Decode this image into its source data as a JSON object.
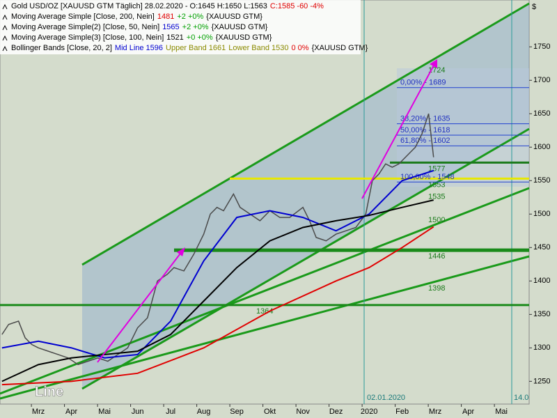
{
  "chart_data": {
    "type": "line",
    "currency": "$",
    "legend_lines": [
      {
        "parts": [
          {
            "text": "Gold USD/OZ [XAUUSD GTM  Täglich] 28.02.2020 - O:1645 H:1650 L:1563",
            "color": "#000000"
          },
          {
            "text": "C:1585 -60 -4%",
            "color": "#e00000"
          }
        ]
      },
      {
        "parts": [
          {
            "text": "Moving Average Simple [Close, 200, Nein]",
            "color": "#000000"
          },
          {
            "text": "1481",
            "color": "#e00000"
          },
          {
            "text": "+2 +0%",
            "color": "#00a000"
          },
          {
            "text": "{XAUUSD GTM}",
            "color": "#000000"
          }
        ]
      },
      {
        "parts": [
          {
            "text": "Moving Average Simple(2) [Close, 50, Nein]",
            "color": "#000000"
          },
          {
            "text": "1565",
            "color": "#0000d0"
          },
          {
            "text": "+2 +0%",
            "color": "#00a000"
          },
          {
            "text": "{XAUUSD GTM}",
            "color": "#000000"
          }
        ]
      },
      {
        "parts": [
          {
            "text": "Moving Average Simple(3) [Close, 100, Nein]",
            "color": "#000000"
          },
          {
            "text": "1521",
            "color": "#000000"
          },
          {
            "text": "+0 +0%",
            "color": "#00a000"
          },
          {
            "text": "{XAUUSD GTM}",
            "color": "#000000"
          }
        ]
      },
      {
        "parts": [
          {
            "text": "Bollinger Bands [Close, 20, 2]",
            "color": "#000000"
          },
          {
            "text": "Mid Line 1596",
            "color": "#0000d0"
          },
          {
            "text": "Upper Band 1661",
            "color": "#8a8a00"
          },
          {
            "text": "Lower Band 1530",
            "color": "#8a8a00"
          },
          {
            "text": "0 0%",
            "color": "#e00000"
          },
          {
            "text": "{XAUUSD GTM}",
            "color": "#000000"
          }
        ]
      }
    ],
    "xlim": [
      -1.16,
      14.84
    ],
    "xticks": [
      {
        "value": 0,
        "label": "Mrz"
      },
      {
        "value": 1,
        "label": "Apr"
      },
      {
        "value": 2,
        "label": "Mai"
      },
      {
        "value": 3,
        "label": "Jun"
      },
      {
        "value": 4,
        "label": "Jul"
      },
      {
        "value": 5,
        "label": "Aug"
      },
      {
        "value": 6,
        "label": "Sep"
      },
      {
        "value": 7,
        "label": "Okt"
      },
      {
        "value": 8,
        "label": "Nov"
      },
      {
        "value": 9,
        "label": "Dez"
      },
      {
        "value": 10,
        "label": "2020"
      },
      {
        "value": 11,
        "label": "Feb"
      },
      {
        "value": 12,
        "label": "Mrz"
      },
      {
        "value": 13,
        "label": "Apr"
      },
      {
        "value": 14,
        "label": "Mai"
      }
    ],
    "ylim": [
      1216,
      1820
    ],
    "yticks": [
      1250,
      1300,
      1350,
      1400,
      1450,
      1500,
      1550,
      1600,
      1650,
      1700,
      1750
    ],
    "series": [
      {
        "name": "Gold USD/OZ",
        "color": "#4a4a4a",
        "x": [
          -1.1,
          -0.9,
          -0.6,
          -0.4,
          -0.2,
          0,
          0.3,
          0.6,
          0.9,
          1.2,
          1.5,
          1.8,
          2.1,
          2.4,
          2.7,
          3.0,
          3.3,
          3.6,
          3.9,
          4.1,
          4.4,
          4.7,
          5.0,
          5.2,
          5.4,
          5.6,
          5.9,
          6.1,
          6.4,
          6.7,
          7.0,
          7.3,
          7.6,
          8.0,
          8.2,
          8.4,
          8.7,
          9.0,
          9.3,
          9.6,
          9.9,
          10.1,
          10.3,
          10.5,
          10.7,
          10.9,
          11.2,
          11.4,
          11.6,
          11.8,
          11.95
        ],
        "values": [
          1320,
          1335,
          1340,
          1315,
          1305,
          1300,
          1295,
          1290,
          1285,
          1275,
          1280,
          1285,
          1280,
          1290,
          1300,
          1330,
          1345,
          1400,
          1410,
          1420,
          1415,
          1440,
          1470,
          1500,
          1510,
          1505,
          1530,
          1510,
          1500,
          1490,
          1505,
          1495,
          1495,
          1510,
          1490,
          1465,
          1460,
          1470,
          1475,
          1480,
          1500,
          1550,
          1560,
          1575,
          1570,
          1575,
          1590,
          1600,
          1620,
          1650,
          1585
        ]
      },
      {
        "name": "Moving Average Simple [Close, 200, Nein]",
        "color": "#e00000",
        "x": [
          -1.1,
          1,
          3,
          5,
          7,
          9,
          10,
          11,
          11.95
        ],
        "values": [
          1245,
          1250,
          1262,
          1300,
          1355,
          1400,
          1420,
          1450,
          1481
        ]
      },
      {
        "name": "Moving Average Simple(2) [Close, 50, Nein]",
        "color": "#0000d0",
        "x": [
          -1.1,
          0,
          1,
          2,
          3,
          4,
          5,
          6,
          7,
          8,
          9,
          10,
          11,
          11.95
        ],
        "values": [
          1300,
          1310,
          1300,
          1285,
          1290,
          1340,
          1430,
          1495,
          1505,
          1495,
          1475,
          1500,
          1550,
          1565
        ]
      },
      {
        "name": "Moving Average Simple(3) [Close, 100, Nein]",
        "color": "#000000",
        "x": [
          -1.1,
          0,
          1,
          2,
          3,
          4,
          5,
          6,
          7,
          8,
          9,
          10,
          11,
          11.95
        ],
        "values": [
          1250,
          1275,
          1285,
          1290,
          1295,
          1320,
          1370,
          1420,
          1460,
          1480,
          1490,
          1498,
          1510,
          1521
        ]
      }
    ],
    "levels": [
      {
        "value": 1577,
        "color": "#1a7a1a"
      },
      {
        "value": 1553,
        "color": "#e8e800"
      },
      {
        "value": 1535,
        "color": "#1a8a1a"
      },
      {
        "value": 1500,
        "color": "#1a8a1a"
      },
      {
        "value": 1446,
        "color": "#1a8a1a"
      },
      {
        "value": 1398,
        "color": "#1a8a1a"
      },
      {
        "value": 1364,
        "color": "#1a8a1a"
      },
      {
        "value": 1724,
        "color": "#1a8a1a"
      }
    ],
    "fib_levels": [
      {
        "value": 1689,
        "label": "0,00% - 1689"
      },
      {
        "value": 1635,
        "label": "38,20% - 1635"
      },
      {
        "value": 1618,
        "label": "50,00% - 1618"
      },
      {
        "value": 1602,
        "label": "61,80% - 1602"
      },
      {
        "value": 1548,
        "label": "100,00% - 1548"
      }
    ],
    "date_marker": "02.01.2020",
    "right_marker": "14.0",
    "watermark": "Line"
  }
}
